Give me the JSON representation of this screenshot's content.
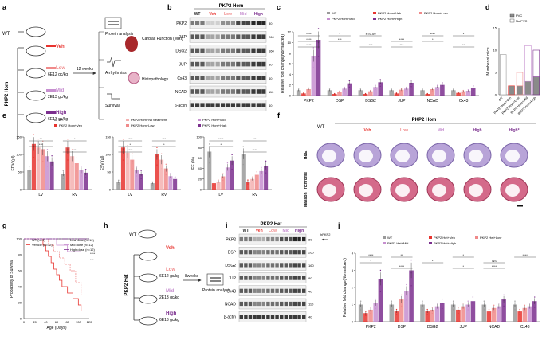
{
  "colors": {
    "wt": "#9a9a9a",
    "veh": "#e8342f",
    "low": "#f08a8a",
    "mid": "#c78fd0",
    "high": "#7b2f8e",
    "pvc": "#8a8a8a",
    "hom": "#222",
    "blot": "#1a1a1a"
  },
  "panels": {
    "a": "a",
    "b": "b",
    "c": "c",
    "d": "d",
    "e": "e",
    "f": "f",
    "g": "g",
    "h": "h",
    "i": "i",
    "j": "j"
  },
  "a": {
    "wt": "WT",
    "pkp2_hom": "PKP2 Hom",
    "groups": [
      {
        "name": "Veh",
        "dose": ""
      },
      {
        "name": "Low",
        "dose": "6E12 gc/kg"
      },
      {
        "name": "Mid",
        "dose": "2E13 gc/kg"
      },
      {
        "name": "High",
        "dose": "6E13 gc/kg"
      }
    ],
    "time": "12 weeks",
    "outcomes": [
      "Protein analysis",
      "Cardiac Function (MRI)",
      "Arrhythmias",
      "Histopathology",
      "Survival"
    ]
  },
  "b": {
    "header": "PKP2 Hom",
    "lanes": [
      "WT",
      "Veh",
      "Low",
      "Mid",
      "High"
    ],
    "rows": [
      {
        "label": "PKP2",
        "kda": "80"
      },
      {
        "label": "DSP",
        "kda": "260"
      },
      {
        "label": "DSG2",
        "kda": "160"
      },
      {
        "label": "JUP",
        "kda": "80"
      },
      {
        "label": "Cx43",
        "kda": "40"
      },
      {
        "label": "NCAD",
        "kda": "110"
      },
      {
        "label": "β-actin",
        "kda": "40"
      }
    ]
  },
  "c": {
    "legend": [
      "WT",
      "PKP2 Hom+Veh",
      "PKP2 Hom+Low",
      "PKP2 Hom+Mid",
      "PKP2 Hom+High"
    ],
    "sig": [
      "****",
      "****",
      "****",
      "*",
      "***",
      "***",
      "P=0.09",
      "****",
      "***",
      "****",
      "*",
      "**",
      "*"
    ],
    "chart_data": {
      "type": "bar",
      "ylabel": "Relative fold change(Normalized)",
      "ylim": [
        0,
        12
      ],
      "yticks": [
        "0",
        "2",
        "4",
        "6",
        "8",
        "10",
        "12"
      ],
      "categories": [
        "PKP2",
        "DSP",
        "DSG2",
        "JUP",
        "NCAD",
        "Cx43"
      ],
      "series": [
        {
          "name": "WT",
          "values": [
            1,
            1,
            1,
            1,
            1,
            1
          ]
        },
        {
          "name": "PKP2 Hom+Veh",
          "values": [
            0.4,
            0.3,
            0.3,
            0.4,
            0.3,
            0.5
          ]
        },
        {
          "name": "PKP2 Hom+Low",
          "values": [
            1.2,
            0.7,
            0.8,
            1.1,
            1.2,
            0.8
          ]
        },
        {
          "name": "PKP2 Hom+Mid",
          "values": [
            7.5,
            1.3,
            1.6,
            1.3,
            1.6,
            0.9
          ]
        },
        {
          "name": "PKP2 Hom+High",
          "values": [
            10.5,
            2.3,
            2.5,
            2.4,
            2.0,
            1.5
          ]
        }
      ]
    }
  },
  "d": {
    "legend": [
      "PVC",
      "No PVC"
    ],
    "chart_data": {
      "type": "bar",
      "ylabel": "Number of mice",
      "ylim": [
        0,
        15
      ],
      "yticks": [
        "0",
        "5",
        "10",
        "15"
      ],
      "categories": [
        "WT",
        "PKP2 Hom+Veh",
        "PKP2 Hom+Low",
        "PKP2 Hom+Mid",
        "PKP2 Hom+High"
      ],
      "series": [
        {
          "name": "PVC",
          "values": [
            0,
            2,
            2,
            3,
            4
          ]
        },
        {
          "name": "No PVC",
          "values": [
            9,
            0,
            3,
            8,
            6
          ]
        }
      ]
    }
  },
  "e": {
    "legend": [
      "WT",
      "PKP2 Hom+Veh",
      "PKP2 Hom+No treatment",
      "PKP2 Hom+Low",
      "PKP2 Hom+Mid",
      "PKP2 Hom+High"
    ],
    "charts": [
      {
        "sig": [
          "**",
          "***",
          "**",
          "*"
        ],
        "chart_data": {
          "type": "bar",
          "ylabel": "EDV (µl)",
          "ylim": [
            0,
            150
          ],
          "yticks": [
            "0",
            "50",
            "100",
            "150"
          ],
          "categories": [
            "LV",
            "RV"
          ],
          "series": [
            {
              "name": "WT",
              "values": [
                55,
                45
              ]
            },
            {
              "name": "PKP2 Hom+Veh",
              "values": [
                130,
                120
              ]
            },
            {
              "name": "PKP2 Hom+No treatment",
              "values": [
                120,
                95
              ]
            },
            {
              "name": "PKP2 Hom+Low",
              "values": [
                115,
                75
              ]
            },
            {
              "name": "PKP2 Hom+Mid",
              "values": [
                95,
                55
              ]
            },
            {
              "name": "PKP2 Hom+High",
              "values": [
                80,
                48
              ]
            }
          ]
        }
      },
      {
        "sig": [
          "****",
          "*",
          "****",
          "***",
          "*"
        ],
        "chart_data": {
          "type": "bar",
          "ylabel": "ESV (µl)",
          "ylim": [
            0,
            150
          ],
          "yticks": [
            "0",
            "50",
            "100",
            "150"
          ],
          "categories": [
            "LV",
            "RV"
          ],
          "series": [
            {
              "name": "WT",
              "values": [
                22,
                18
              ]
            },
            {
              "name": "PKP2 Hom+Veh",
              "values": [
                120,
                100
              ]
            },
            {
              "name": "PKP2 Hom+No treatment",
              "values": [
                105,
                85
              ]
            },
            {
              "name": "PKP2 Hom+Low",
              "values": [
                85,
                60
              ]
            },
            {
              "name": "PKP2 Hom+Mid",
              "values": [
                55,
                38
              ]
            },
            {
              "name": "PKP2 Hom+High",
              "values": [
                45,
                30
              ]
            }
          ]
        }
      },
      {
        "sig": [
          "****",
          "*",
          "****",
          "**"
        ],
        "chart_data": {
          "type": "bar",
          "ylabel": "EF (%)",
          "ylim": [
            0,
            100
          ],
          "yticks": [
            "0",
            "20",
            "40",
            "60",
            "80",
            "100"
          ],
          "categories": [
            "LV",
            "RV"
          ],
          "series": [
            {
              "name": "WT",
              "values": [
                72,
                68
              ]
            },
            {
              "name": "PKP2 Hom+Veh",
              "values": [
                12,
                15
              ]
            },
            {
              "name": "PKP2 Hom+No treatment",
              "values": [
                15,
                20
              ]
            },
            {
              "name": "PKP2 Hom+Low",
              "values": [
                25,
                28
              ]
            },
            {
              "name": "PKP2 Hom+Mid",
              "values": [
                42,
                35
              ]
            },
            {
              "name": "PKP2 Hom+High",
              "values": [
                55,
                45
              ]
            }
          ]
        }
      }
    ]
  },
  "f": {
    "wt": "WT",
    "header": "PKP2 Hom",
    "cols": [
      "Veh",
      "Low",
      "Mid",
      "High",
      "High*"
    ],
    "rows": [
      "H&E",
      "Masson Trichrome"
    ]
  },
  "g": {
    "legend": [
      "WT (n=9)",
      "Vehicle (n=12)",
      "Low dose (n=12)",
      "Mid dose (n=12)",
      "High dose (n=12)"
    ],
    "sig": [
      "****",
      "***"
    ],
    "chart_data": {
      "type": "line",
      "title": "",
      "xlabel": "Age (Days)",
      "ylabel": "Probability of Survival",
      "xlim": [
        0,
        120
      ],
      "ylim": [
        0,
        100
      ],
      "xticks": [
        "0",
        "20",
        "40",
        "60",
        "80",
        "100",
        "120"
      ],
      "yticks": [
        "0",
        "20",
        "40",
        "60",
        "80",
        "100"
      ],
      "series": [
        {
          "name": "WT (n=9)",
          "x": [
            0,
            120
          ],
          "y": [
            100,
            100
          ]
        },
        {
          "name": "Vehicle (n=12)",
          "x": [
            0,
            35,
            40,
            45,
            50,
            55,
            60,
            65,
            70,
            80,
            90,
            100,
            105
          ],
          "y": [
            100,
            92,
            85,
            78,
            70,
            62,
            55,
            48,
            40,
            32,
            25,
            17,
            10
          ]
        },
        {
          "name": "Low dose (n=12)",
          "x": [
            0,
            45,
            55,
            65,
            75,
            85,
            95,
            105
          ],
          "y": [
            100,
            92,
            84,
            76,
            68,
            60,
            45,
            30
          ]
        },
        {
          "name": "Mid dose (n=12)",
          "x": [
            0,
            60,
            80,
            105
          ],
          "y": [
            100,
            92,
            84,
            84
          ]
        },
        {
          "name": "High dose (n=12)",
          "x": [
            0,
            120
          ],
          "y": [
            100,
            100
          ]
        }
      ]
    }
  },
  "h": {
    "wt": "WT",
    "pkp2_het": "PKP2 Het",
    "groups": [
      {
        "name": "Veh",
        "dose": ""
      },
      {
        "name": "Low",
        "dose": "6E12 gc/kg"
      },
      {
        "name": "Mid",
        "dose": "2E13 gc/kg"
      },
      {
        "name": "High",
        "dose": "6E13 gc/kg"
      }
    ],
    "time": "8weeks",
    "outcome": "Protein analysis"
  },
  "i": {
    "header": "PKP2 Het",
    "lanes": [
      "WT",
      "Veh",
      "Low",
      "Mid",
      "High"
    ],
    "arrow_label": "hPKP2",
    "rows": [
      {
        "label": "PKP2",
        "kda": "80"
      },
      {
        "label": "DSP",
        "kda": "260"
      },
      {
        "label": "DSG2",
        "kda": "160"
      },
      {
        "label": "JUP",
        "kda": "80"
      },
      {
        "label": "Cx43",
        "kda": "40"
      },
      {
        "label": "NCAD",
        "kda": "110"
      },
      {
        "label": "β-actin",
        "kda": "40"
      }
    ]
  },
  "j": {
    "legend": [
      "WT",
      "PKP2 Het+Veh",
      "PKP2 Het+Low",
      "PKP2 Het+Mid",
      "PKP2 Het+High"
    ],
    "sig": [
      "****",
      "*",
      "****",
      "**",
      "*",
      "*",
      "*",
      "NS",
      "****",
      "****"
    ],
    "chart_data": {
      "type": "bar",
      "ylabel": "Relative fold change(Normalized)",
      "ylim": [
        0,
        4
      ],
      "yticks": [
        "0",
        "1",
        "2",
        "3",
        "4"
      ],
      "categories": [
        "PKP2",
        "DSP",
        "DSG2",
        "JUP",
        "NCAD",
        "Cx43"
      ],
      "series": [
        {
          "name": "WT",
          "values": [
            1,
            1,
            1,
            1,
            1,
            1
          ]
        },
        {
          "name": "PKP2 Het+Veh",
          "values": [
            0.5,
            0.6,
            0.6,
            0.7,
            0.6,
            0.6
          ]
        },
        {
          "name": "PKP2 Het+Low",
          "values": [
            0.7,
            1.3,
            0.7,
            0.9,
            0.8,
            0.8
          ]
        },
        {
          "name": "PKP2 Het+Mid",
          "values": [
            1.1,
            1.8,
            0.9,
            1.0,
            0.9,
            0.9
          ]
        },
        {
          "name": "PKP2 Het+High",
          "values": [
            2.5,
            3.0,
            1.1,
            1.2,
            1.3,
            1.2
          ]
        }
      ]
    }
  }
}
